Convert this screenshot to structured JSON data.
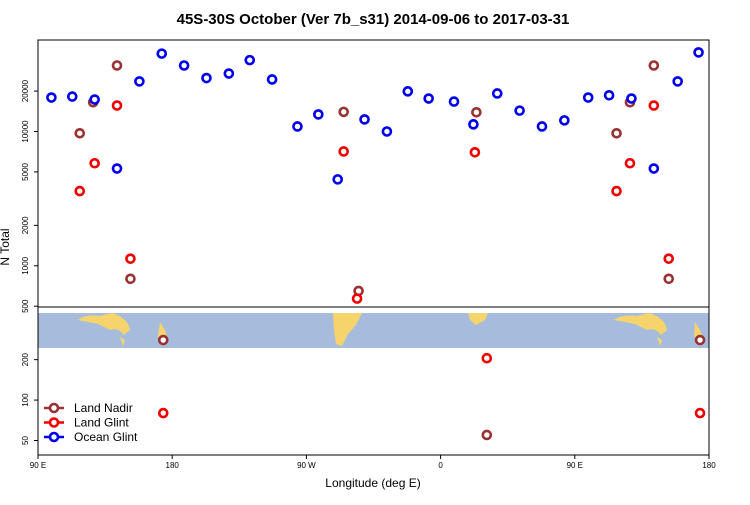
{
  "chart_data": {
    "type": "scatter",
    "title": "45S-30S October (Ver 7b_s31)   2014-09-06 to 2017-03-31",
    "xlabel": "Longitude (deg E)",
    "ylabel": "N Total",
    "log_y": true,
    "legend": "lower left",
    "xlim": [
      90,
      540
    ],
    "xticks": [
      {
        "value": 90,
        "label": "90 E"
      },
      180,
      {
        "value": 270,
        "label": "90 W"
      },
      {
        "value": 360,
        "label": "0"
      },
      {
        "value": 450,
        "label": "90 E"
      },
      {
        "value": 540,
        "label": "180"
      }
    ],
    "ylim": [
      39,
      48000
    ],
    "yticks": [
      50,
      100,
      200,
      500,
      1000,
      2000,
      5000,
      10000,
      20000
    ],
    "series": [
      {
        "name": "Land Nadir",
        "color": "#993333",
        "x": [
          118,
          127,
          143,
          152,
          174,
          295,
          305,
          384,
          391,
          478,
          487,
          503,
          513,
          534
        ],
        "values": [
          9700,
          16500,
          31000,
          800,
          280,
          14000,
          650,
          13900,
          55,
          9700,
          16500,
          31000,
          800,
          280
        ]
      },
      {
        "name": "Land Glint",
        "color": "#ee0000",
        "x": [
          118,
          128,
          143,
          152,
          174,
          295,
          304,
          383,
          391,
          478,
          487,
          503,
          513,
          534
        ],
        "values": [
          3600,
          5800,
          15600,
          1130,
          80,
          7100,
          570,
          7000,
          205,
          3600,
          5800,
          15600,
          1130,
          80
        ]
      },
      {
        "name": "Ocean Glint",
        "color": "#0000ee",
        "x": [
          99,
          113,
          128,
          143,
          158,
          173,
          188,
          203,
          218,
          232,
          247,
          264,
          278,
          291,
          309,
          324,
          338,
          352,
          369,
          382,
          398,
          413,
          428,
          443,
          459,
          473,
          488,
          503,
          519,
          533
        ],
        "values": [
          17900,
          18200,
          17300,
          5300,
          23600,
          38000,
          31000,
          25000,
          27000,
          34000,
          24400,
          10900,
          13400,
          4400,
          12300,
          10000,
          19900,
          17600,
          16700,
          11300,
          19200,
          14300,
          10900,
          12100,
          17900,
          18600,
          17600,
          5300,
          23600,
          38800
        ]
      }
    ]
  }
}
